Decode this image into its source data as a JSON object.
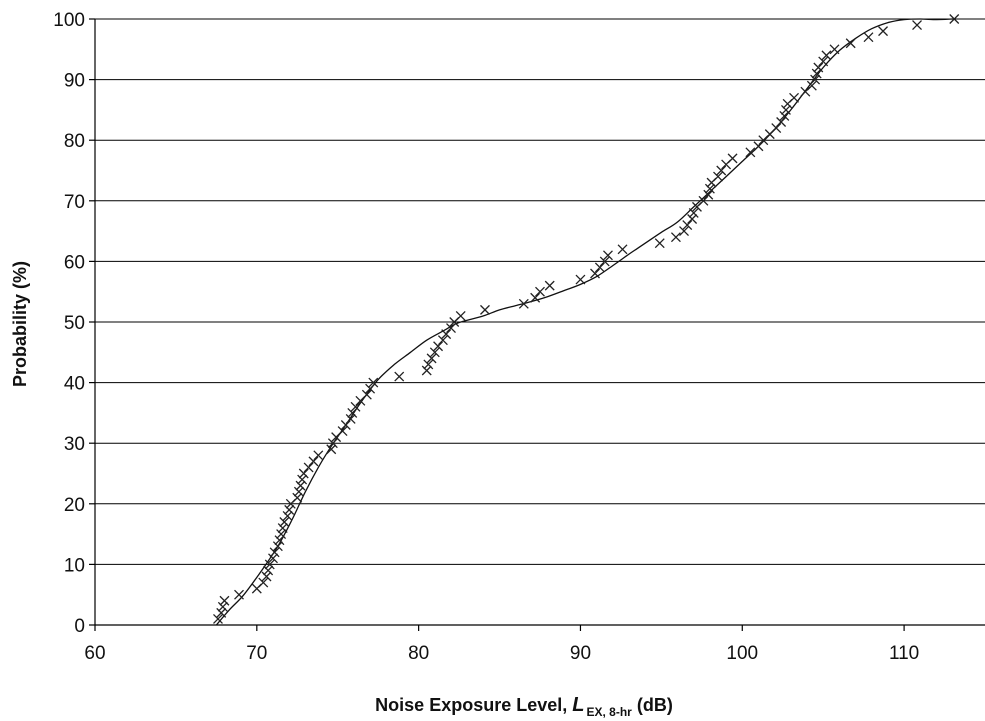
{
  "chart_data": {
    "type": "scatter",
    "title": "",
    "xlabel": {
      "prefix": "Noise Exposure Level,  ",
      "symbol": "L",
      "subscript": "EX, 8-hr",
      "suffix": " (dB)"
    },
    "ylabel": "Probability  (%)",
    "xlim": [
      60,
      115
    ],
    "ylim": [
      0,
      100
    ],
    "xticks": [
      60,
      70,
      80,
      90,
      100,
      110
    ],
    "yticks": [
      0,
      10,
      20,
      30,
      40,
      50,
      60,
      70,
      80,
      90,
      100
    ],
    "grid": "horizontal",
    "legend": "none",
    "marker": "x",
    "series": [
      {
        "kind": "points",
        "points": [
          [
            67.6,
            1
          ],
          [
            67.8,
            2
          ],
          [
            67.9,
            3
          ],
          [
            68.0,
            4
          ],
          [
            68.9,
            5
          ],
          [
            70.0,
            6
          ],
          [
            70.4,
            7
          ],
          [
            70.6,
            8
          ],
          [
            70.7,
            9
          ],
          [
            70.8,
            10
          ],
          [
            71.0,
            11
          ],
          [
            71.1,
            12
          ],
          [
            71.3,
            13
          ],
          [
            71.4,
            14
          ],
          [
            71.5,
            15
          ],
          [
            71.6,
            16
          ],
          [
            71.7,
            17
          ],
          [
            71.9,
            18
          ],
          [
            72.0,
            19
          ],
          [
            72.1,
            20
          ],
          [
            72.5,
            21
          ],
          [
            72.6,
            22
          ],
          [
            72.7,
            23
          ],
          [
            72.8,
            24
          ],
          [
            72.9,
            25
          ],
          [
            73.2,
            26
          ],
          [
            73.5,
            27
          ],
          [
            73.8,
            28
          ],
          [
            74.6,
            29
          ],
          [
            74.7,
            30
          ],
          [
            74.9,
            31
          ],
          [
            75.3,
            32
          ],
          [
            75.5,
            33
          ],
          [
            75.8,
            34
          ],
          [
            75.9,
            35
          ],
          [
            76.1,
            36
          ],
          [
            76.4,
            37
          ],
          [
            76.8,
            38
          ],
          [
            77.0,
            39
          ],
          [
            77.2,
            40
          ],
          [
            78.8,
            41
          ],
          [
            80.5,
            42
          ],
          [
            80.6,
            43
          ],
          [
            80.8,
            44
          ],
          [
            81.0,
            45
          ],
          [
            81.2,
            46
          ],
          [
            81.5,
            47
          ],
          [
            81.7,
            48
          ],
          [
            82.0,
            49
          ],
          [
            82.2,
            50
          ],
          [
            82.6,
            51
          ],
          [
            84.1,
            52
          ],
          [
            86.5,
            53
          ],
          [
            87.2,
            54
          ],
          [
            87.5,
            55
          ],
          [
            88.1,
            56
          ],
          [
            90.0,
            57
          ],
          [
            90.9,
            58
          ],
          [
            91.2,
            59
          ],
          [
            91.5,
            60
          ],
          [
            91.7,
            61
          ],
          [
            92.6,
            62
          ],
          [
            94.9,
            63
          ],
          [
            95.9,
            64
          ],
          [
            96.4,
            65
          ],
          [
            96.6,
            66
          ],
          [
            96.9,
            67
          ],
          [
            97.0,
            68
          ],
          [
            97.2,
            69
          ],
          [
            97.6,
            70
          ],
          [
            97.9,
            71
          ],
          [
            98.0,
            72
          ],
          [
            98.1,
            73
          ],
          [
            98.5,
            74
          ],
          [
            98.7,
            75
          ],
          [
            99.0,
            76
          ],
          [
            99.4,
            77
          ],
          [
            100.5,
            78
          ],
          [
            101.0,
            79
          ],
          [
            101.3,
            80
          ],
          [
            101.7,
            81
          ],
          [
            102.1,
            82
          ],
          [
            102.4,
            83
          ],
          [
            102.6,
            84
          ],
          [
            102.7,
            85
          ],
          [
            102.8,
            86
          ],
          [
            103.2,
            87
          ],
          [
            103.9,
            88
          ],
          [
            104.3,
            89
          ],
          [
            104.5,
            90
          ],
          [
            104.6,
            91
          ],
          [
            104.7,
            92
          ],
          [
            105.0,
            93
          ],
          [
            105.2,
            94
          ],
          [
            105.7,
            95
          ],
          [
            106.7,
            96
          ],
          [
            107.8,
            97
          ],
          [
            108.7,
            98
          ],
          [
            110.8,
            99
          ],
          [
            113.1,
            100
          ]
        ]
      },
      {
        "kind": "line",
        "points": [
          [
            67.5,
            0
          ],
          [
            68.3,
            2.5
          ],
          [
            69.2,
            5
          ],
          [
            70.3,
            9
          ],
          [
            71.3,
            13
          ],
          [
            72.2,
            17.5
          ],
          [
            73.0,
            22
          ],
          [
            73.8,
            26
          ],
          [
            74.6,
            29.5
          ],
          [
            75.5,
            33
          ],
          [
            76.5,
            37
          ],
          [
            77.5,
            40.5
          ],
          [
            78.5,
            43
          ],
          [
            79.5,
            45
          ],
          [
            80.5,
            47
          ],
          [
            81.5,
            48.5
          ],
          [
            82.3,
            49.7
          ],
          [
            83.0,
            50.3
          ],
          [
            84.0,
            51
          ],
          [
            85.0,
            52
          ],
          [
            86.0,
            52.7
          ],
          [
            87.0,
            53.4
          ],
          [
            88.0,
            54.2
          ],
          [
            89.0,
            55.2
          ],
          [
            90.0,
            56.2
          ],
          [
            91.0,
            57.5
          ],
          [
            92.0,
            59.3
          ],
          [
            93.0,
            61.2
          ],
          [
            94.0,
            63
          ],
          [
            95.0,
            64.8
          ],
          [
            96.0,
            66.5
          ],
          [
            97.0,
            69
          ],
          [
            98.0,
            71.5
          ],
          [
            99.0,
            74
          ],
          [
            100.0,
            76.5
          ],
          [
            101.0,
            79
          ],
          [
            102.0,
            81.8
          ],
          [
            103.0,
            85
          ],
          [
            104.0,
            88.5
          ],
          [
            105.0,
            92
          ],
          [
            106.0,
            94.8
          ],
          [
            107.0,
            96.8
          ],
          [
            108.0,
            98.4
          ],
          [
            109.0,
            99.4
          ],
          [
            110.0,
            99.9
          ],
          [
            111.0,
            100
          ],
          [
            112.0,
            99.9
          ],
          [
            113.0,
            100
          ]
        ]
      }
    ]
  }
}
